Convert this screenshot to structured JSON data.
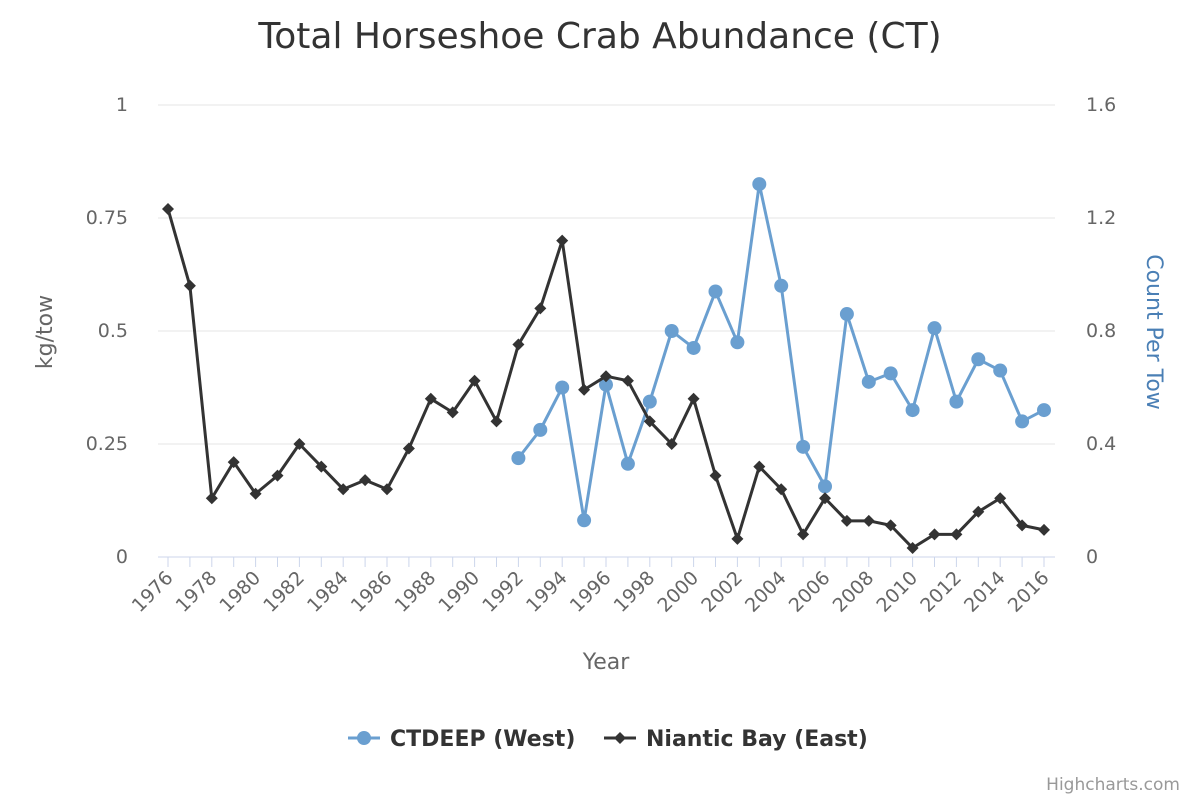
{
  "chart_data": {
    "type": "line",
    "title": "Total Horseshoe Crab Abundance (CT)",
    "xlabel": "Year",
    "ylabel_left": "kg/tow",
    "ylabel_right": "Count Per Tow",
    "xlim": [
      1976,
      2016
    ],
    "ylim_left": [
      0,
      1
    ],
    "ylim_right": [
      0,
      1.6
    ],
    "left_ticks": [
      "0",
      "0.25",
      "0.5",
      "0.75",
      "1"
    ],
    "right_ticks": [
      "0",
      "0.4",
      "0.8",
      "1.2",
      "1.6"
    ],
    "x_ticks": [
      "1976",
      "1978",
      "1980",
      "1982",
      "1984",
      "1986",
      "1988",
      "1990",
      "1992",
      "1994",
      "1996",
      "1998",
      "2000",
      "2002",
      "2004",
      "2006",
      "2008",
      "2010",
      "2012",
      "2014",
      "2016"
    ],
    "grid": true,
    "legend_position": "bottom",
    "credits": "Highcharts.com",
    "series": [
      {
        "name": "CTDEEP (West)",
        "axis": "right",
        "color": "#6a9fd0",
        "marker": "circle",
        "x": [
          1992,
          1993,
          1994,
          1995,
          1996,
          1997,
          1998,
          1999,
          2000,
          2001,
          2002,
          2003,
          2004,
          2005,
          2006,
          2007,
          2008,
          2009,
          2010,
          2011,
          2012,
          2013,
          2014,
          2015,
          2016
        ],
        "values": [
          0.35,
          0.45,
          0.6,
          0.13,
          0.61,
          0.33,
          0.55,
          0.8,
          0.74,
          0.94,
          0.76,
          1.32,
          0.96,
          0.39,
          0.25,
          0.86,
          0.62,
          0.65,
          0.52,
          0.81,
          0.55,
          0.7,
          0.66,
          0.48,
          0.52
        ]
      },
      {
        "name": "Niantic Bay (East)",
        "axis": "left",
        "color": "#333333",
        "marker": "diamond",
        "x": [
          1976,
          1977,
          1978,
          1979,
          1980,
          1981,
          1982,
          1983,
          1984,
          1985,
          1986,
          1987,
          1988,
          1989,
          1990,
          1991,
          1992,
          1993,
          1994,
          1995,
          1996,
          1997,
          1998,
          1999,
          2000,
          2001,
          2002,
          2003,
          2004,
          2005,
          2006,
          2007,
          2008,
          2009,
          2010,
          2011,
          2012,
          2013,
          2014,
          2015,
          2016
        ],
        "values": [
          0.77,
          0.6,
          0.13,
          0.21,
          0.14,
          0.18,
          0.25,
          0.2,
          0.15,
          0.17,
          0.15,
          0.24,
          0.35,
          0.32,
          0.39,
          0.3,
          0.47,
          0.55,
          0.7,
          0.37,
          0.4,
          0.39,
          0.3,
          0.25,
          0.35,
          0.18,
          0.04,
          0.2,
          0.15,
          0.05,
          0.13,
          0.08,
          0.08,
          0.07,
          0.02,
          0.05,
          0.05,
          0.1,
          0.13,
          0.07,
          0.06
        ]
      }
    ]
  }
}
